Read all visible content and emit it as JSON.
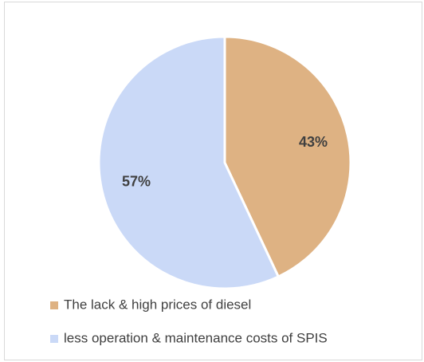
{
  "chart_data": {
    "type": "pie",
    "categories": [
      "The lack & high prices of diesel",
      "less operation & maintenance costs of SPIS"
    ],
    "values": [
      43,
      57
    ],
    "value_labels": [
      "43%",
      "57%"
    ],
    "colors": [
      "#deb283",
      "#cad9f7"
    ],
    "legend": "bottom"
  }
}
